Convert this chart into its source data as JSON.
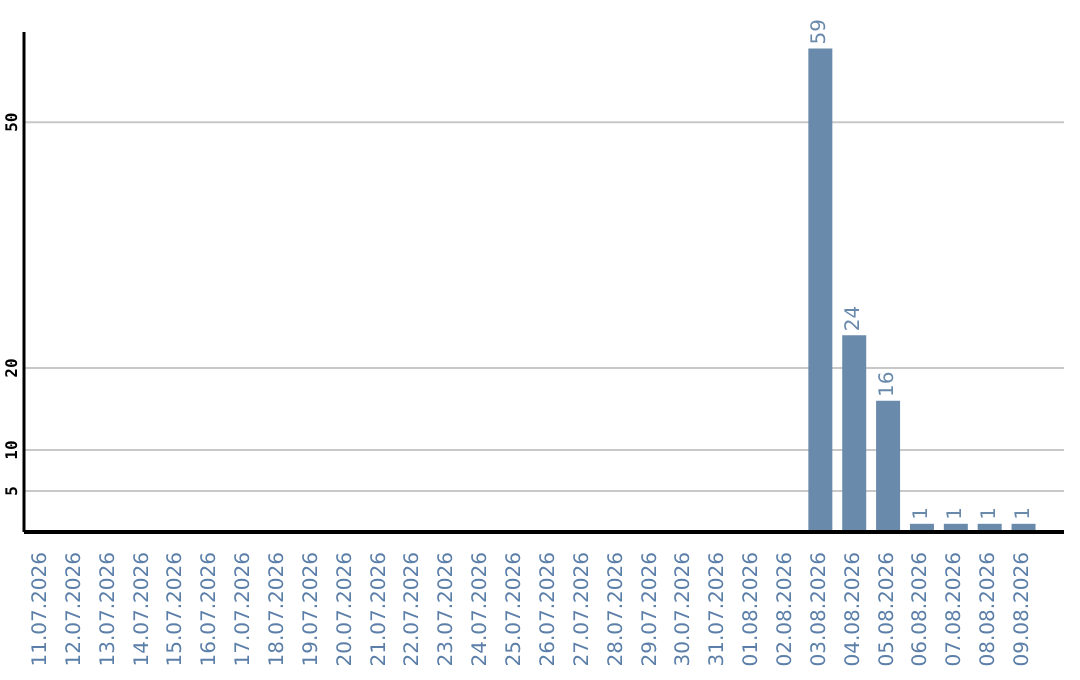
{
  "chart_data": {
    "type": "bar",
    "categories": [
      "11.07.2026",
      "12.07.2026",
      "13.07.2026",
      "14.07.2026",
      "15.07.2026",
      "16.07.2026",
      "17.07.2026",
      "18.07.2026",
      "19.07.2026",
      "20.07.2026",
      "21.07.2026",
      "22.07.2026",
      "23.07.2026",
      "24.07.2026",
      "25.07.2026",
      "26.07.2026",
      "27.07.2026",
      "28.07.2026",
      "29.07.2026",
      "30.07.2026",
      "31.07.2026",
      "01.08.2026",
      "02.08.2026",
      "03.08.2026",
      "04.08.2026",
      "05.08.2026",
      "06.08.2026",
      "07.08.2026",
      "08.08.2026",
      "09.08.2026"
    ],
    "values": [
      0,
      0,
      0,
      0,
      0,
      0,
      0,
      0,
      0,
      0,
      0,
      0,
      0,
      0,
      0,
      0,
      0,
      0,
      0,
      0,
      0,
      0,
      0,
      59,
      24,
      16,
      1,
      1,
      1,
      1
    ],
    "value_labels": [
      null,
      null,
      null,
      null,
      null,
      null,
      null,
      null,
      null,
      null,
      null,
      null,
      null,
      null,
      null,
      null,
      null,
      null,
      null,
      null,
      null,
      null,
      null,
      "59",
      "24",
      "16",
      "1",
      "1",
      "1",
      "1"
    ],
    "color": "#6a8aab",
    "ylim": [
      0,
      61
    ],
    "yticks": [
      5,
      10,
      20,
      50
    ],
    "grid": "y"
  }
}
